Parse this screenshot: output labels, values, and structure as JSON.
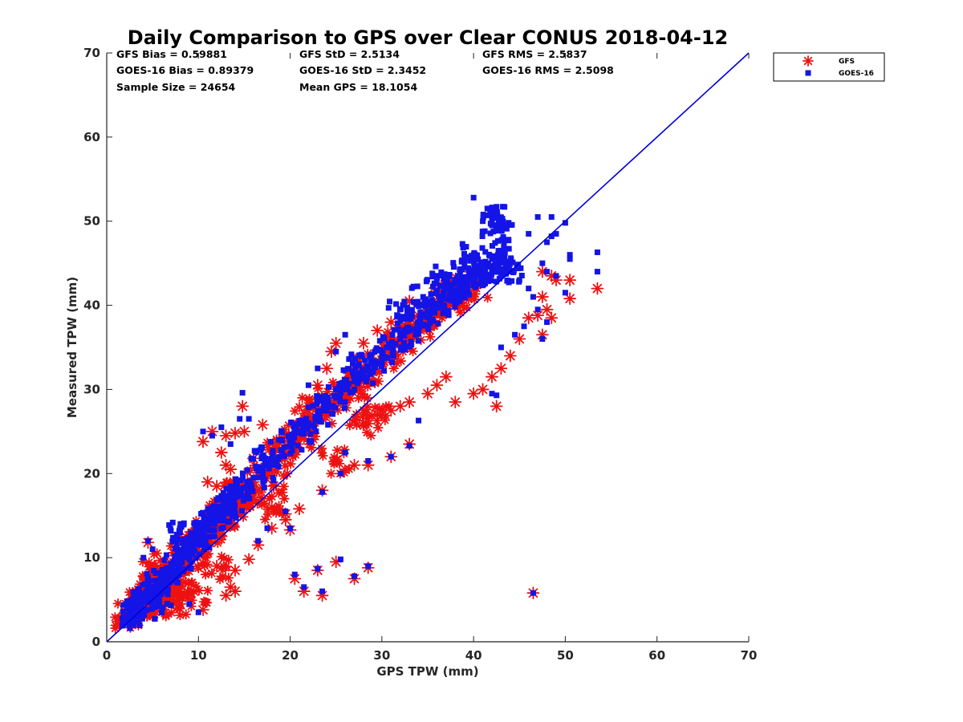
{
  "chart_data": {
    "type": "scatter",
    "title": "Daily Comparison to GPS over Clear CONUS 2018-04-12",
    "xlabel": "GPS TPW (mm)",
    "ylabel": "Measured TPW (mm)",
    "xlim": [
      0,
      70
    ],
    "ylim": [
      0,
      70
    ],
    "xticks": [
      "0",
      "10",
      "20",
      "30",
      "40",
      "50",
      "60",
      "70"
    ],
    "yticks": [
      "0",
      "10",
      "20",
      "30",
      "40",
      "50",
      "60",
      "70"
    ],
    "legend_position": "outside-top-right",
    "stats": [
      [
        "GFS Bias = 0.59881",
        "GFS StD = 2.5134",
        "GFS RMS = 2.5837"
      ],
      [
        "GOES-16 Bias = 0.89379",
        "GOES-16 StD = 2.3452",
        "GOES-16 RMS = 2.5098"
      ],
      [
        "Sample Size = 24654",
        "Mean GPS = 18.1054"
      ]
    ],
    "reference_line": {
      "name": "1:1 line",
      "color": "#0000dd",
      "x": [
        0,
        70
      ],
      "y": [
        0,
        70
      ]
    },
    "sample_size": 24654,
    "series": [
      {
        "name": "GFS",
        "marker": "asterisk",
        "color": "#ee1111",
        "points": [
          [
            2.5,
            3
          ],
          [
            3,
            3.5
          ],
          [
            3.5,
            4.2
          ],
          [
            4,
            4.8
          ],
          [
            4.5,
            5.5
          ],
          [
            5,
            5.8
          ],
          [
            5.5,
            6.5
          ],
          [
            6,
            7
          ],
          [
            6.5,
            7.8
          ],
          [
            7,
            8
          ],
          [
            7.5,
            8.5
          ],
          [
            8,
            9.2
          ],
          [
            8.5,
            10
          ],
          [
            9,
            10.5
          ],
          [
            9.5,
            11
          ],
          [
            10,
            11.8
          ],
          [
            10.5,
            12.5
          ],
          [
            11,
            13
          ],
          [
            11.5,
            13.8
          ],
          [
            12,
            14.5
          ],
          [
            12.5,
            15
          ],
          [
            13,
            15.5
          ],
          [
            13.5,
            16.2
          ],
          [
            14,
            17
          ],
          [
            14.5,
            17.5
          ],
          [
            15,
            18
          ],
          [
            16,
            19
          ],
          [
            17,
            20
          ],
          [
            18,
            21.5
          ],
          [
            19,
            22.5
          ],
          [
            20,
            23.5
          ],
          [
            21,
            24.5
          ],
          [
            22,
            25.5
          ],
          [
            23,
            26.5
          ],
          [
            24,
            27.5
          ],
          [
            25,
            28.5
          ],
          [
            26,
            29.5
          ],
          [
            27,
            30.5
          ],
          [
            28,
            31.5
          ],
          [
            29,
            32.5
          ],
          [
            30,
            33.5
          ],
          [
            31,
            34.5
          ],
          [
            32,
            35.5
          ],
          [
            33,
            36.5
          ],
          [
            34,
            37.5
          ],
          [
            35,
            38.5
          ],
          [
            36,
            39.5
          ],
          [
            37,
            40.5
          ],
          [
            38,
            41.2
          ],
          [
            39,
            41.8
          ],
          [
            40,
            42.5
          ],
          [
            3.5,
            4.5
          ],
          [
            4.5,
            11.8
          ],
          [
            5.2,
            9
          ],
          [
            6.5,
            5
          ],
          [
            7.5,
            6.5
          ],
          [
            8,
            4.5
          ],
          [
            9.5,
            6
          ],
          [
            10.5,
            3.8
          ],
          [
            10.5,
            23.8
          ],
          [
            11.5,
            25
          ],
          [
            12.5,
            22.5
          ],
          [
            13,
            24.5
          ],
          [
            14,
            24.8
          ],
          [
            14.8,
            28
          ],
          [
            15,
            25
          ],
          [
            13.5,
            20.5
          ],
          [
            16,
            21.8
          ],
          [
            17,
            25.8
          ],
          [
            18,
            16
          ],
          [
            19.5,
            15.2
          ],
          [
            21,
            15.8
          ],
          [
            20,
            13.3
          ],
          [
            11,
            19
          ],
          [
            12,
            18.5
          ],
          [
            13,
            21
          ],
          [
            12,
            9
          ],
          [
            13.5,
            6.5
          ],
          [
            13,
            5.5
          ],
          [
            14,
            6
          ],
          [
            14,
            8.5
          ],
          [
            15.5,
            9.8
          ],
          [
            16.5,
            11.5
          ],
          [
            18,
            13.5
          ],
          [
            18.2,
            18.5
          ],
          [
            19.5,
            14.5
          ],
          [
            20.5,
            7.5
          ],
          [
            21.5,
            6
          ],
          [
            23,
            8.5
          ],
          [
            23.5,
            5.5
          ],
          [
            25,
            9.5
          ],
          [
            27,
            7.5
          ],
          [
            28.5,
            8.8
          ],
          [
            23.5,
            18
          ],
          [
            25,
            21.5
          ],
          [
            27,
            21
          ],
          [
            28.5,
            21
          ],
          [
            31,
            22
          ],
          [
            33,
            23.5
          ],
          [
            22,
            27.5
          ],
          [
            24,
            29
          ],
          [
            24.5,
            34.5
          ],
          [
            25,
            35.5
          ],
          [
            24,
            32.5
          ],
          [
            23,
            30.5
          ],
          [
            28,
            35.5
          ],
          [
            29.5,
            37
          ],
          [
            31,
            38
          ],
          [
            33,
            40.5
          ],
          [
            28,
            26
          ],
          [
            29.5,
            27
          ],
          [
            31,
            27.5
          ],
          [
            32,
            28
          ],
          [
            33,
            28.5
          ],
          [
            35,
            29.5
          ],
          [
            36,
            30.5
          ],
          [
            37,
            31.5
          ],
          [
            38,
            28.5
          ],
          [
            40,
            29.5
          ],
          [
            41,
            30
          ],
          [
            42,
            31.5
          ],
          [
            43,
            32.5
          ],
          [
            42.5,
            28
          ],
          [
            44,
            34
          ],
          [
            45,
            36
          ],
          [
            46,
            38.5
          ],
          [
            47,
            38.8
          ],
          [
            47.5,
            41
          ],
          [
            48,
            39.5
          ],
          [
            48.5,
            38.5
          ],
          [
            47.5,
            44
          ],
          [
            48.5,
            43.5
          ],
          [
            49,
            43
          ],
          [
            47.5,
            36.5
          ],
          [
            50.5,
            43
          ],
          [
            50.5,
            40.8
          ],
          [
            53.5,
            42
          ],
          [
            46.5,
            5.8
          ]
        ]
      },
      {
        "name": "GOES-16",
        "marker": "square",
        "color": "#1414e6",
        "points": [
          [
            2.5,
            3.2
          ],
          [
            3,
            3.8
          ],
          [
            3.5,
            4.5
          ],
          [
            4,
            5
          ],
          [
            4.5,
            5.8
          ],
          [
            5,
            6.2
          ],
          [
            5.5,
            6.8
          ],
          [
            6,
            7.5
          ],
          [
            6.5,
            8
          ],
          [
            7,
            8.6
          ],
          [
            7.5,
            9.2
          ],
          [
            8,
            9.8
          ],
          [
            8.5,
            10.5
          ],
          [
            9,
            11
          ],
          [
            9.5,
            11.6
          ],
          [
            10,
            12.2
          ],
          [
            10.5,
            13
          ],
          [
            11,
            13.5
          ],
          [
            11.5,
            14.2
          ],
          [
            12,
            14.8
          ],
          [
            12.5,
            15.4
          ],
          [
            13,
            16
          ],
          [
            13.5,
            16.5
          ],
          [
            14,
            17.2
          ],
          [
            14.5,
            17.8
          ],
          [
            15,
            18.3
          ],
          [
            16,
            19.5
          ],
          [
            17,
            20.5
          ],
          [
            18,
            21.8
          ],
          [
            19,
            22.8
          ],
          [
            20,
            24
          ],
          [
            21,
            25
          ],
          [
            22,
            26
          ],
          [
            23,
            27
          ],
          [
            24,
            28
          ],
          [
            25,
            29
          ],
          [
            26,
            30
          ],
          [
            27,
            31
          ],
          [
            28,
            32
          ],
          [
            29,
            33
          ],
          [
            30,
            34
          ],
          [
            31,
            35
          ],
          [
            32,
            36
          ],
          [
            33,
            37
          ],
          [
            34,
            38
          ],
          [
            35,
            39
          ],
          [
            36,
            40
          ],
          [
            37,
            40.8
          ],
          [
            38,
            41.5
          ],
          [
            39,
            42
          ],
          [
            40,
            43
          ],
          [
            41,
            43.5
          ],
          [
            42,
            44
          ],
          [
            3,
            2.5
          ],
          [
            4,
            10
          ],
          [
            4.5,
            12
          ],
          [
            5,
            11
          ],
          [
            6,
            3.5
          ],
          [
            7,
            13.2
          ],
          [
            8,
            13
          ],
          [
            9,
            4.5
          ],
          [
            10,
            3.5
          ],
          [
            10.5,
            25
          ],
          [
            11.5,
            24.5
          ],
          [
            12.5,
            25.5
          ],
          [
            13.5,
            23.5
          ],
          [
            14.5,
            26.5
          ],
          [
            14.8,
            29.6
          ],
          [
            15.5,
            26.5
          ],
          [
            17,
            22
          ],
          [
            16.5,
            12
          ],
          [
            17.5,
            13.5
          ],
          [
            20,
            13.5
          ],
          [
            19.5,
            15.5
          ],
          [
            20.5,
            8
          ],
          [
            21.5,
            6.5
          ],
          [
            23,
            8.7
          ],
          [
            23.5,
            6
          ],
          [
            25.5,
            9.8
          ],
          [
            27,
            7.8
          ],
          [
            28.5,
            9
          ],
          [
            23.5,
            17.8
          ],
          [
            25.5,
            20
          ],
          [
            26,
            22.5
          ],
          [
            28.5,
            21.5
          ],
          [
            31,
            22
          ],
          [
            33,
            23.3
          ],
          [
            34,
            26.3
          ],
          [
            23,
            32.5
          ],
          [
            25,
            34.5
          ],
          [
            26,
            36.5
          ],
          [
            22,
            30.5
          ],
          [
            27.5,
            33
          ],
          [
            32,
            39.5
          ],
          [
            34.5,
            41
          ],
          [
            36,
            43.5
          ],
          [
            37,
            42
          ],
          [
            38,
            43
          ],
          [
            39,
            45
          ],
          [
            40,
            46
          ],
          [
            41,
            44.5
          ],
          [
            42,
            45.5
          ],
          [
            43,
            46.5
          ],
          [
            43.5,
            45
          ],
          [
            44,
            44
          ],
          [
            45,
            43
          ],
          [
            46,
            42
          ],
          [
            46.5,
            41
          ],
          [
            47,
            39.5
          ],
          [
            45.5,
            37.5
          ],
          [
            44.5,
            36.5
          ],
          [
            43,
            35
          ],
          [
            42,
            29.5
          ],
          [
            42.5,
            29.3
          ],
          [
            47.5,
            36
          ],
          [
            48,
            38
          ],
          [
            40,
            52.8
          ],
          [
            41,
            50
          ],
          [
            41.5,
            51.5
          ],
          [
            42.5,
            50.5
          ],
          [
            43,
            49
          ],
          [
            42,
            49.5
          ],
          [
            46,
            48.5
          ],
          [
            47,
            50.5
          ],
          [
            48.5,
            50.5
          ],
          [
            48,
            47.5
          ],
          [
            48.5,
            48.2
          ],
          [
            49,
            48.5
          ],
          [
            50,
            49.8
          ],
          [
            47.5,
            45
          ],
          [
            48,
            44
          ],
          [
            49,
            43.5
          ],
          [
            50,
            41.5
          ],
          [
            50.5,
            45.5
          ],
          [
            50.5,
            46
          ],
          [
            53.5,
            46.3
          ],
          [
            53.5,
            44
          ],
          [
            46.5,
            5.8
          ]
        ]
      }
    ]
  }
}
